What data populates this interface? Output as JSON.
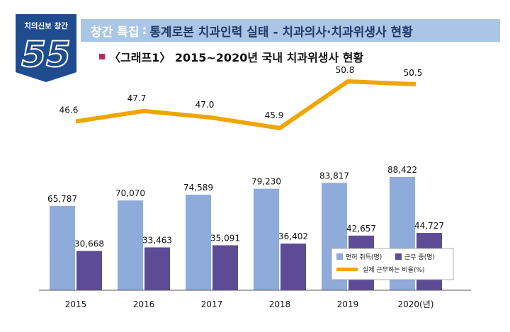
{
  "badge": {
    "line1": "치의신보 창간",
    "number": "55"
  },
  "header": {
    "prefix": "창간 특집",
    "separator": ":",
    "text": "통계로본 치과인력 실태 - 치과의사·치과위생사 현황"
  },
  "subtitle": "〈그래프1〉 2015~2020년 국내 치과위생사 현황",
  "colors": {
    "licensed": "#8fabd9",
    "working": "#5e4b96",
    "ratio": "#f0a500",
    "header": "#a9c6e6",
    "badge": "#1f4c8f"
  },
  "legend": {
    "licensed": "면허 취득(명)",
    "working": "근무 중(명)",
    "ratio": "실제 근무하는 비율(%)"
  },
  "chart_data": {
    "type": "bar",
    "categories": [
      "2015",
      "2016",
      "2017",
      "2018",
      "2019",
      "2020(년)"
    ],
    "series": [
      {
        "name": "면허 취득(명)",
        "values": [
          65787,
          70070,
          74589,
          79230,
          83817,
          88422
        ],
        "labels": [
          "65,787",
          "70,070",
          "74,589",
          "79,230",
          "83,817",
          "88,422"
        ]
      },
      {
        "name": "근무 중(명)",
        "values": [
          30668,
          33463,
          35091,
          36402,
          42657,
          44727
        ],
        "labels": [
          "30,668",
          "33,463",
          "35,091",
          "36,402",
          "42,657",
          "44,727"
        ]
      }
    ],
    "line_series": {
      "name": "실제 근무하는 비율(%)",
      "values": [
        46.6,
        47.7,
        47.0,
        45.9,
        50.8,
        50.5
      ],
      "labels": [
        "46.6",
        "47.7",
        "47.0",
        "45.9",
        "50.8",
        "50.5"
      ]
    },
    "ylim": [
      0,
      100000
    ],
    "grid": false,
    "legend_position": "bottom-right"
  }
}
